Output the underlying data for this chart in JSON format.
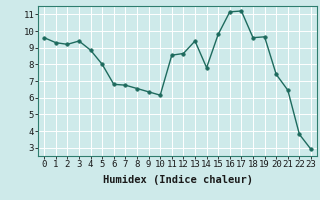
{
  "x": [
    0,
    1,
    2,
    3,
    4,
    5,
    6,
    7,
    8,
    9,
    10,
    11,
    12,
    13,
    14,
    15,
    16,
    17,
    18,
    19,
    20,
    21,
    22,
    23
  ],
  "y": [
    9.6,
    9.3,
    9.2,
    9.4,
    8.85,
    8.0,
    6.8,
    6.75,
    6.55,
    6.35,
    6.15,
    8.55,
    8.65,
    9.4,
    7.8,
    9.8,
    11.15,
    11.2,
    9.6,
    9.65,
    7.4,
    6.45,
    3.8,
    2.9
  ],
  "line_color": "#1e6b5e",
  "marker": "o",
  "markersize": 2.5,
  "linewidth": 1.0,
  "xlabel": "Humidex (Indice chaleur)",
  "xlim": [
    -0.5,
    23.5
  ],
  "ylim": [
    2.5,
    11.5
  ],
  "yticks": [
    3,
    4,
    5,
    6,
    7,
    8,
    9,
    10,
    11
  ],
  "xticks": [
    0,
    1,
    2,
    3,
    4,
    5,
    6,
    7,
    8,
    9,
    10,
    11,
    12,
    13,
    14,
    15,
    16,
    17,
    18,
    19,
    20,
    21,
    22,
    23
  ],
  "bg_color": "#ceeaea",
  "grid_color": "#ffffff",
  "tick_fontsize": 6.5,
  "xlabel_fontsize": 7.5,
  "spine_color": "#2e7d6e"
}
